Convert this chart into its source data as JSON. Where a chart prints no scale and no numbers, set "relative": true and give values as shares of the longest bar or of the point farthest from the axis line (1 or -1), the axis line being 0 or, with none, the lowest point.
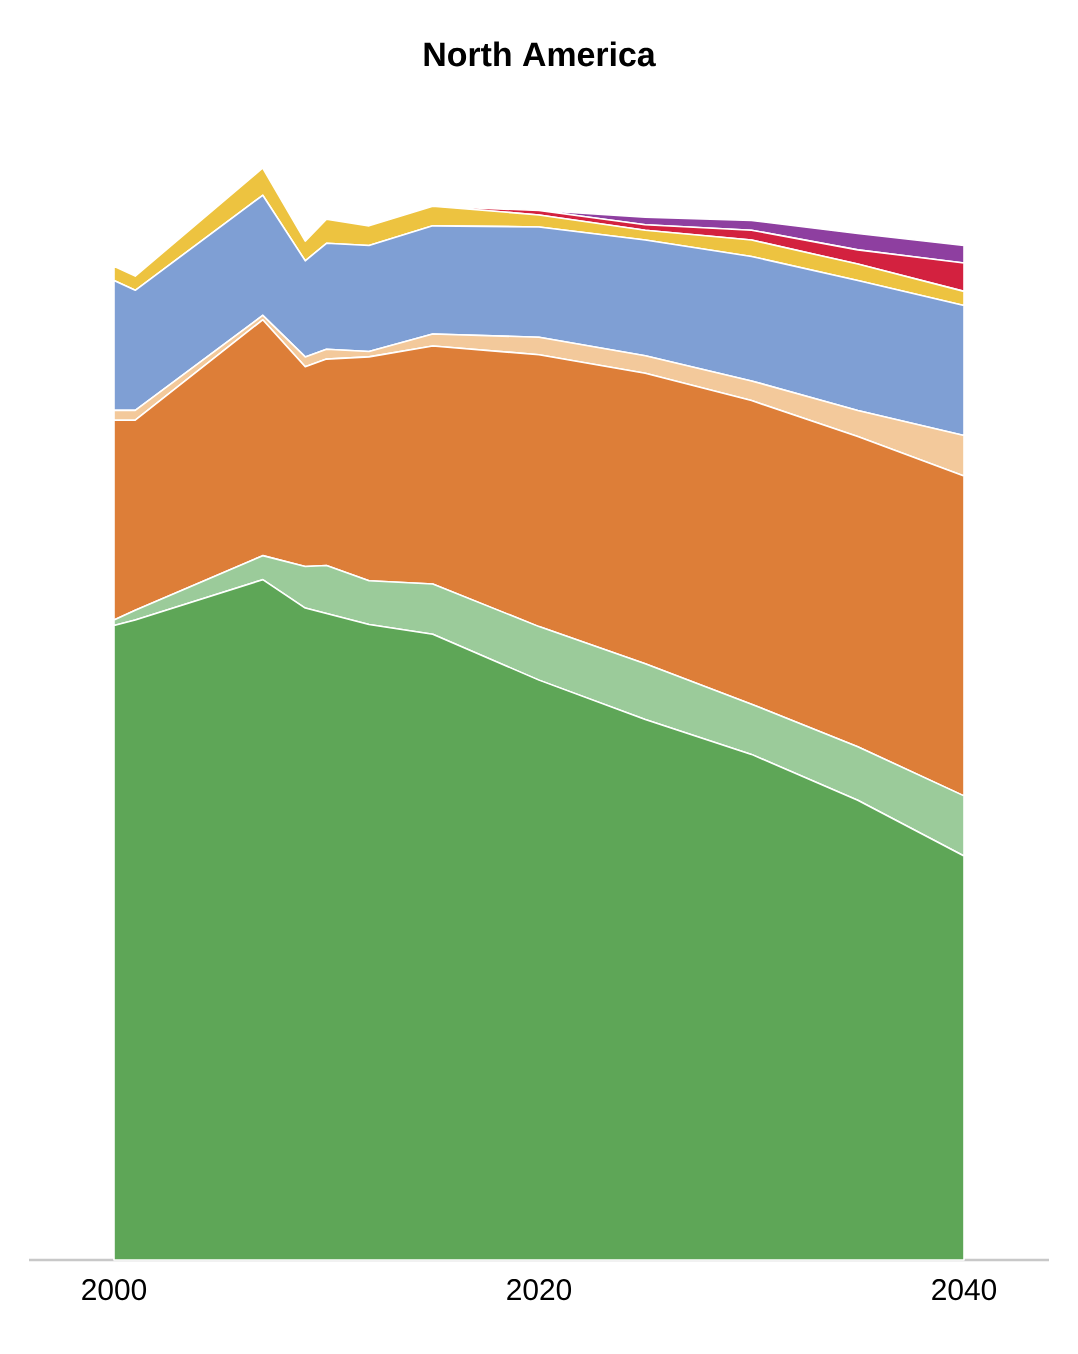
{
  "chart_data": {
    "type": "area",
    "title": "North America",
    "stacked": true,
    "relative": true,
    "x": [
      2000,
      2001,
      2007,
      2009,
      2010,
      2012,
      2015,
      2020,
      2025,
      2030,
      2035,
      2040
    ],
    "xlim": [
      1996,
      2044
    ],
    "xticks": [
      2000,
      2020,
      2040
    ],
    "series": [
      {
        "color": "#5ea657",
        "values": [
          0.581,
          0.586,
          0.623,
          0.597,
          0.592,
          0.582,
          0.573,
          0.531,
          0.495,
          0.463,
          0.421,
          0.37
        ]
      },
      {
        "color": "#9bcb9a",
        "values": [
          0.005,
          0.009,
          0.022,
          0.038,
          0.044,
          0.04,
          0.046,
          0.049,
          0.051,
          0.046,
          0.049,
          0.055
        ]
      },
      {
        "color": "#dd7e38",
        "values": [
          0.183,
          0.174,
          0.216,
          0.183,
          0.189,
          0.205,
          0.218,
          0.249,
          0.266,
          0.278,
          0.284,
          0.293
        ]
      },
      {
        "color": "#f3c99b",
        "values": [
          0.009,
          0.009,
          0.004,
          0.009,
          0.009,
          0.005,
          0.011,
          0.016,
          0.016,
          0.018,
          0.024,
          0.037
        ]
      },
      {
        "color": "#7f9fd4",
        "values": [
          0.119,
          0.11,
          0.11,
          0.088,
          0.097,
          0.097,
          0.099,
          0.101,
          0.106,
          0.114,
          0.119,
          0.119
        ]
      },
      {
        "color": "#edc340",
        "values": [
          0.013,
          0.013,
          0.025,
          0.018,
          0.022,
          0.018,
          0.018,
          0.011,
          0.009,
          0.015,
          0.015,
          0.013
        ]
      },
      {
        "color": "#d3213f",
        "values": [
          0,
          0,
          0,
          0,
          0,
          0,
          0,
          0.004,
          0.005,
          0.009,
          0.013,
          0.026
        ]
      },
      {
        "color": "#8e3fa0",
        "values": [
          0,
          0,
          0,
          0,
          0,
          0,
          0,
          0,
          0.007,
          0.009,
          0.015,
          0.016
        ]
      }
    ]
  }
}
